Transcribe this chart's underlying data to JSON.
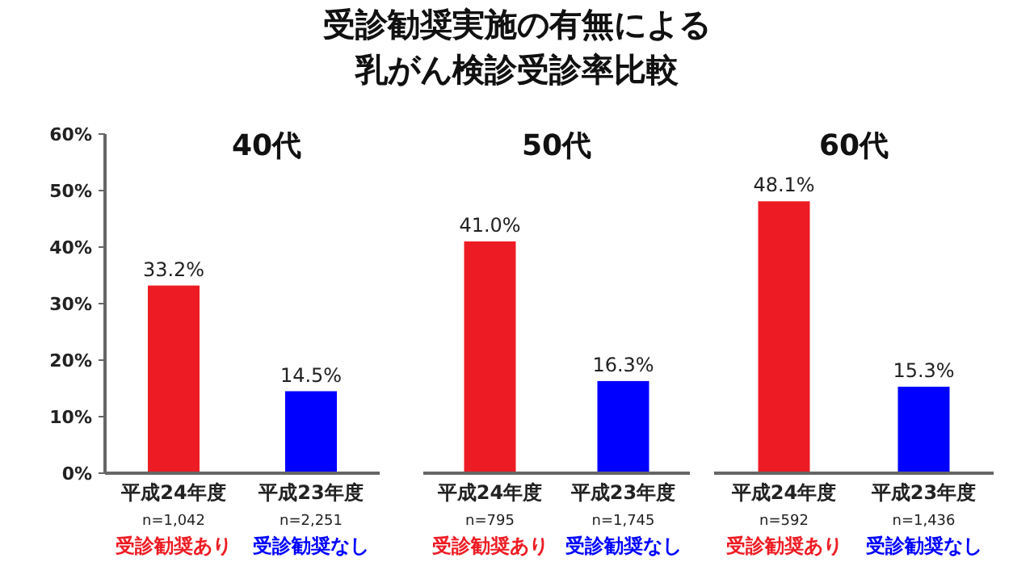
{
  "chart_data": [
    {
      "type": "bar",
      "title": "受診勧奨実施の有無による乳がん検診受診率比較",
      "subtitle": "40代",
      "categories": [
        "平成24年度",
        "平成23年度"
      ],
      "series": [
        {
          "name": "受診勧奨あり",
          "color": "#ed1c24",
          "values": [
            33.2,
            null
          ],
          "value_labels": [
            "33.2%",
            null
          ]
        },
        {
          "name": "受診勧奨なし",
          "color": "#0000ff",
          "values": [
            null,
            14.5
          ],
          "value_labels": [
            null,
            "14.5%"
          ]
        }
      ],
      "ylim": [
        0,
        60
      ],
      "yticks": [
        {
          "value": 0,
          "label": "0%"
        },
        {
          "value": 10,
          "label": "10%"
        },
        {
          "value": 20,
          "label": "20%"
        },
        {
          "value": 30,
          "label": "30%"
        },
        {
          "value": 40,
          "label": "40%"
        },
        {
          "value": 50,
          "label": "50%"
        },
        {
          "value": 60,
          "label": "60%"
        }
      ],
      "annotations": [
        "n=1,042",
        "n=2,251"
      ]
    },
    {
      "type": "bar",
      "subtitle": "50代",
      "categories": [
        "平成24年度",
        "平成23年度"
      ],
      "series": [
        {
          "name": "受診勧奨あり",
          "color": "#ed1c24",
          "values": [
            41.0,
            null
          ],
          "value_labels": [
            "41.0%",
            null
          ]
        },
        {
          "name": "受診勧奨なし",
          "color": "#0000ff",
          "values": [
            null,
            16.3
          ],
          "value_labels": [
            null,
            "16.3%"
          ]
        }
      ],
      "ylim": [
        0,
        60
      ],
      "tick_labels": "x",
      "annotations": [
        "n=795",
        "n=1,745"
      ]
    },
    {
      "type": "bar",
      "subtitle": "60代",
      "categories": [
        "平成24年度",
        "平成23年度"
      ],
      "series": [
        {
          "name": "受診勧奨あり",
          "color": "#ed1c24",
          "values": [
            48.1,
            null
          ],
          "value_labels": [
            "48.1%",
            null
          ]
        },
        {
          "name": "受診勧奨なし",
          "color": "#0000ff",
          "values": [
            null,
            15.3
          ],
          "value_labels": [
            null,
            "15.3%"
          ]
        }
      ],
      "ylim": [
        0,
        60
      ],
      "tick_labels": "x",
      "annotations": [
        "n=592",
        "n=1,436"
      ]
    }
  ]
}
